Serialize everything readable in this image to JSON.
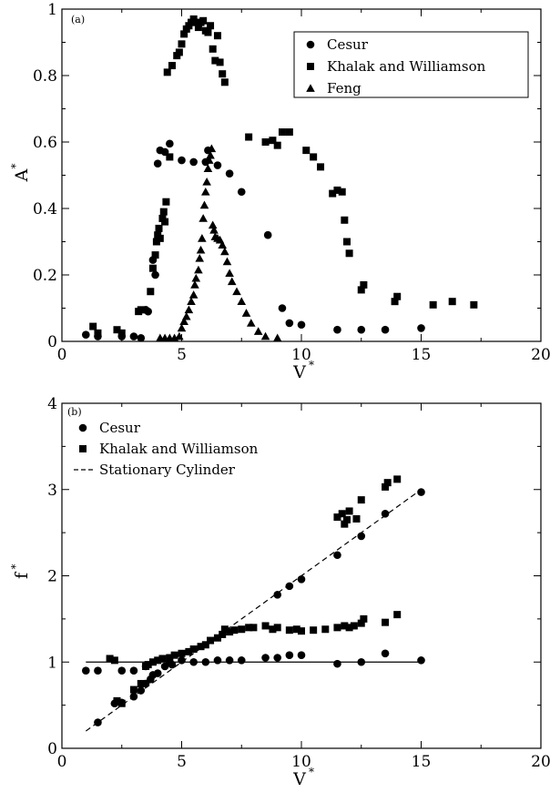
{
  "chart_data": [
    {
      "type": "scatter",
      "panel_label": "(a)",
      "xlabel": "V",
      "xlabel_sup": "*",
      "ylabel": "A",
      "ylabel_sup": "*",
      "xlim": [
        0,
        20
      ],
      "ylim": [
        0,
        1
      ],
      "xticks": [
        "0",
        "5",
        "10",
        "15",
        "20"
      ],
      "yticks": [
        "0",
        "0.2",
        "0.4",
        "0.6",
        "0.8",
        "1"
      ],
      "legend_position": "top-right",
      "series": [
        {
          "name": "Cesur",
          "marker": "circle",
          "points": [
            [
              1.0,
              0.02
            ],
            [
              1.5,
              0.015
            ],
            [
              2.5,
              0.015
            ],
            [
              3.0,
              0.015
            ],
            [
              3.3,
              0.01
            ],
            [
              3.5,
              0.095
            ],
            [
              3.6,
              0.09
            ],
            [
              3.8,
              0.245
            ],
            [
              3.9,
              0.2
            ],
            [
              4.0,
              0.535
            ],
            [
              4.1,
              0.575
            ],
            [
              4.3,
              0.57
            ],
            [
              4.5,
              0.595
            ],
            [
              5.0,
              0.545
            ],
            [
              5.5,
              0.54
            ],
            [
              6.0,
              0.54
            ],
            [
              6.1,
              0.575
            ],
            [
              6.5,
              0.53
            ],
            [
              7.0,
              0.505
            ],
            [
              7.5,
              0.45
            ],
            [
              8.6,
              0.32
            ],
            [
              9.2,
              0.1
            ],
            [
              9.5,
              0.055
            ],
            [
              10.0,
              0.05
            ],
            [
              11.5,
              0.035
            ],
            [
              12.5,
              0.035
            ],
            [
              13.5,
              0.035
            ],
            [
              15.0,
              0.04
            ]
          ]
        },
        {
          "name": "Khalak and Williamson",
          "marker": "square",
          "points": [
            [
              1.3,
              0.045
            ],
            [
              1.5,
              0.025
            ],
            [
              2.3,
              0.035
            ],
            [
              2.5,
              0.025
            ],
            [
              3.2,
              0.09
            ],
            [
              3.3,
              0.095
            ],
            [
              3.7,
              0.15
            ],
            [
              3.8,
              0.22
            ],
            [
              3.9,
              0.26
            ],
            [
              3.95,
              0.3
            ],
            [
              4.0,
              0.32
            ],
            [
              4.05,
              0.34
            ],
            [
              4.1,
              0.31
            ],
            [
              4.2,
              0.37
            ],
            [
              4.25,
              0.39
            ],
            [
              4.3,
              0.36
            ],
            [
              4.35,
              0.42
            ],
            [
              4.4,
              0.81
            ],
            [
              4.5,
              0.555
            ],
            [
              4.6,
              0.83
            ],
            [
              4.8,
              0.86
            ],
            [
              4.9,
              0.87
            ],
            [
              5.0,
              0.895
            ],
            [
              5.1,
              0.925
            ],
            [
              5.2,
              0.94
            ],
            [
              5.3,
              0.95
            ],
            [
              5.4,
              0.96
            ],
            [
              5.5,
              0.97
            ],
            [
              5.6,
              0.96
            ],
            [
              5.7,
              0.945
            ],
            [
              5.8,
              0.96
            ],
            [
              5.9,
              0.965
            ],
            [
              6.0,
              0.935
            ],
            [
              6.1,
              0.93
            ],
            [
              6.2,
              0.95
            ],
            [
              6.3,
              0.88
            ],
            [
              6.4,
              0.845
            ],
            [
              6.5,
              0.92
            ],
            [
              6.6,
              0.84
            ],
            [
              6.7,
              0.805
            ],
            [
              6.8,
              0.78
            ],
            [
              7.8,
              0.615
            ],
            [
              8.5,
              0.6
            ],
            [
              8.8,
              0.605
            ],
            [
              9.0,
              0.59
            ],
            [
              9.2,
              0.63
            ],
            [
              9.5,
              0.63
            ],
            [
              10.2,
              0.575
            ],
            [
              10.5,
              0.555
            ],
            [
              10.8,
              0.525
            ],
            [
              11.3,
              0.445
            ],
            [
              11.5,
              0.455
            ],
            [
              11.7,
              0.45
            ],
            [
              11.8,
              0.365
            ],
            [
              11.9,
              0.3
            ],
            [
              12.0,
              0.265
            ],
            [
              12.5,
              0.155
            ],
            [
              12.6,
              0.17
            ],
            [
              13.9,
              0.12
            ],
            [
              14.0,
              0.135
            ],
            [
              15.5,
              0.11
            ],
            [
              16.3,
              0.12
            ],
            [
              17.2,
              0.11
            ]
          ]
        },
        {
          "name": "Feng",
          "marker": "triangle",
          "points": [
            [
              4.1,
              0.01
            ],
            [
              4.3,
              0.01
            ],
            [
              4.5,
              0.01
            ],
            [
              4.7,
              0.01
            ],
            [
              4.9,
              0.015
            ],
            [
              5.0,
              0.04
            ],
            [
              5.1,
              0.06
            ],
            [
              5.2,
              0.075
            ],
            [
              5.3,
              0.095
            ],
            [
              5.4,
              0.12
            ],
            [
              5.5,
              0.14
            ],
            [
              5.55,
              0.17
            ],
            [
              5.6,
              0.19
            ],
            [
              5.7,
              0.215
            ],
            [
              5.75,
              0.25
            ],
            [
              5.8,
              0.275
            ],
            [
              5.85,
              0.31
            ],
            [
              5.9,
              0.37
            ],
            [
              5.95,
              0.41
            ],
            [
              6.0,
              0.45
            ],
            [
              6.05,
              0.48
            ],
            [
              6.1,
              0.52
            ],
            [
              6.15,
              0.545
            ],
            [
              6.2,
              0.56
            ],
            [
              6.25,
              0.58
            ],
            [
              6.3,
              0.35
            ],
            [
              6.35,
              0.335
            ],
            [
              6.4,
              0.315
            ],
            [
              6.5,
              0.31
            ],
            [
              6.6,
              0.305
            ],
            [
              6.7,
              0.29
            ],
            [
              6.8,
              0.27
            ],
            [
              6.9,
              0.24
            ],
            [
              7.0,
              0.205
            ],
            [
              7.1,
              0.18
            ],
            [
              7.3,
              0.15
            ],
            [
              7.5,
              0.12
            ],
            [
              7.7,
              0.085
            ],
            [
              7.9,
              0.055
            ],
            [
              8.2,
              0.03
            ],
            [
              8.5,
              0.015
            ],
            [
              9.0,
              0.01
            ]
          ]
        }
      ]
    },
    {
      "type": "scatter",
      "panel_label": "(b)",
      "xlabel": "V",
      "xlabel_sup": "*",
      "ylabel": "f",
      "ylabel_sup": "*",
      "xlim": [
        0,
        20
      ],
      "ylim": [
        0,
        4
      ],
      "xticks": [
        "0",
        "5",
        "10",
        "15",
        "20"
      ],
      "yticks": [
        "0",
        "1",
        "2",
        "3",
        "4"
      ],
      "legend_position": "top-left",
      "reference_lines": [
        {
          "style": "solid",
          "points": [
            [
              1.0,
              1.0
            ],
            [
              15.0,
              1.0
            ]
          ]
        }
      ],
      "series": [
        {
          "name": "Cesur",
          "marker": "circle",
          "points": [
            [
              1.0,
              0.9
            ],
            [
              1.5,
              0.3
            ],
            [
              1.5,
              0.9
            ],
            [
              2.2,
              0.52
            ],
            [
              2.5,
              0.53
            ],
            [
              2.5,
              0.9
            ],
            [
              3.0,
              0.6
            ],
            [
              3.0,
              0.9
            ],
            [
              3.3,
              0.67
            ],
            [
              3.5,
              0.75
            ],
            [
              3.5,
              0.95
            ],
            [
              3.7,
              0.8
            ],
            [
              3.8,
              0.85
            ],
            [
              4.0,
              0.87
            ],
            [
              4.3,
              0.95
            ],
            [
              4.5,
              1.0
            ],
            [
              4.6,
              0.97
            ],
            [
              5.0,
              1.02
            ],
            [
              5.5,
              1.0
            ],
            [
              6.0,
              1.0
            ],
            [
              6.5,
              1.02
            ],
            [
              7.0,
              1.02
            ],
            [
              7.5,
              1.02
            ],
            [
              8.5,
              1.05
            ],
            [
              9.0,
              1.05
            ],
            [
              9.5,
              1.08
            ],
            [
              10.0,
              1.08
            ],
            [
              9.0,
              1.78
            ],
            [
              9.5,
              1.88
            ],
            [
              10.0,
              1.96
            ],
            [
              11.5,
              0.98
            ],
            [
              12.5,
              1.0
            ],
            [
              13.5,
              1.1
            ],
            [
              15.0,
              1.02
            ],
            [
              11.5,
              2.24
            ],
            [
              12.5,
              2.46
            ],
            [
              13.5,
              2.72
            ],
            [
              15.0,
              2.97
            ]
          ]
        },
        {
          "name": "Khalak and Williamson",
          "marker": "square",
          "points": [
            [
              2.0,
              1.04
            ],
            [
              2.2,
              1.02
            ],
            [
              2.3,
              0.55
            ],
            [
              2.5,
              0.52
            ],
            [
              3.0,
              0.68
            ],
            [
              3.3,
              0.75
            ],
            [
              3.5,
              0.95
            ],
            [
              3.6,
              0.97
            ],
            [
              3.8,
              1.0
            ],
            [
              4.0,
              1.02
            ],
            [
              4.2,
              1.04
            ],
            [
              4.5,
              1.05
            ],
            [
              4.7,
              1.08
            ],
            [
              5.0,
              1.1
            ],
            [
              5.3,
              1.12
            ],
            [
              5.5,
              1.15
            ],
            [
              5.8,
              1.18
            ],
            [
              6.0,
              1.2
            ],
            [
              6.2,
              1.25
            ],
            [
              6.5,
              1.28
            ],
            [
              6.7,
              1.32
            ],
            [
              6.8,
              1.38
            ],
            [
              7.0,
              1.35
            ],
            [
              7.2,
              1.37
            ],
            [
              7.5,
              1.38
            ],
            [
              7.8,
              1.4
            ],
            [
              8.0,
              1.4
            ],
            [
              8.5,
              1.42
            ],
            [
              8.8,
              1.38
            ],
            [
              9.0,
              1.4
            ],
            [
              9.5,
              1.37
            ],
            [
              9.8,
              1.38
            ],
            [
              10.0,
              1.36
            ],
            [
              10.5,
              1.37
            ],
            [
              11.0,
              1.38
            ],
            [
              11.5,
              1.4
            ],
            [
              11.8,
              1.42
            ],
            [
              12.0,
              1.4
            ],
            [
              12.2,
              1.42
            ],
            [
              12.5,
              1.45
            ],
            [
              12.6,
              1.5
            ],
            [
              13.5,
              1.46
            ],
            [
              14.0,
              1.55
            ],
            [
              11.5,
              2.68
            ],
            [
              11.7,
              2.72
            ],
            [
              11.8,
              2.6
            ],
            [
              11.9,
              2.65
            ],
            [
              12.0,
              2.75
            ],
            [
              12.3,
              2.66
            ],
            [
              12.5,
              2.88
            ],
            [
              13.5,
              3.03
            ],
            [
              13.6,
              3.08
            ],
            [
              14.0,
              3.12
            ]
          ]
        },
        {
          "name": "Stationary Cylinder",
          "marker": "dashed-line",
          "points": [
            [
              1.0,
              0.2
            ],
            [
              15.0,
              3.0
            ]
          ]
        }
      ]
    }
  ]
}
